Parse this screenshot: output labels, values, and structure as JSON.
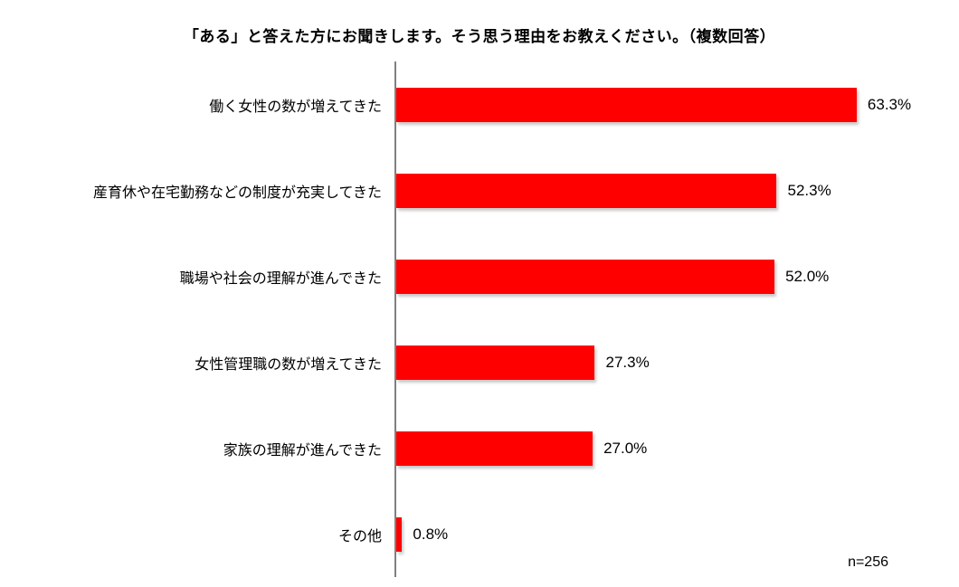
{
  "chart_data": {
    "type": "bar",
    "orientation": "horizontal",
    "title": "「ある」と答えた方にお聞きします。そう思う理由をお教えください。（複数回答）",
    "categories": [
      "働く女性の数が増えてきた",
      "産育休や在宅勤務などの制度が充実してきた",
      "職場や社会の理解が進んできた",
      "女性管理職の数が増えてきた",
      "家族の理解が進んできた",
      "その他"
    ],
    "values": [
      63.3,
      52.3,
      52.0,
      27.3,
      27.0,
      0.8
    ],
    "value_labels": [
      "63.3%",
      "52.3%",
      "52.0%",
      "27.3%",
      "27.0%",
      "0.8%"
    ],
    "sample_size_label": "n=256",
    "bar_color": "#ff0000",
    "axis_color": "#808080",
    "xlim": [
      0,
      75
    ],
    "grid": false,
    "legend": "none",
    "unit": "%"
  }
}
